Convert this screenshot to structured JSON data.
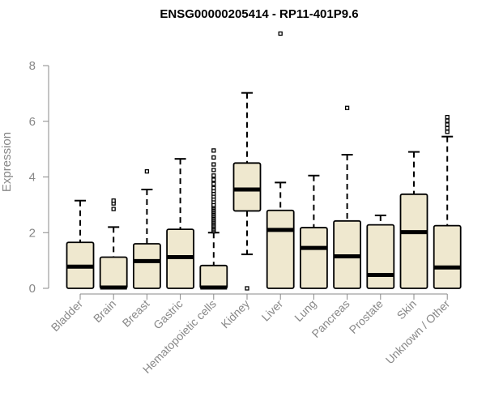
{
  "chart_data": {
    "type": "boxplot",
    "title": "ENSG00000205414 - RP11-401P9.6",
    "xlabel": "",
    "ylabel": "Expression",
    "ylim": [
      0,
      9.3
    ],
    "yticks": [
      0,
      2,
      4,
      6,
      8
    ],
    "grid": false,
    "legend": "none",
    "box_fill": "#efe8cf",
    "box_stroke": "#000000",
    "categories": [
      "Bladder",
      "Brain",
      "Breast",
      "Gastric",
      "Hematopoietic cells",
      "Kidney",
      "Liver",
      "Lung",
      "Pancreas",
      "Prostate",
      "Skin",
      "Unknown / Other"
    ],
    "boxes": [
      {
        "category": "Bladder",
        "min": 0,
        "q1": 0,
        "median": 0.78,
        "q3": 1.65,
        "max": 3.15,
        "outliers": []
      },
      {
        "category": "Brain",
        "min": 0,
        "q1": 0,
        "median": 0.03,
        "q3": 1.12,
        "max": 2.2,
        "outliers": [
          2.85,
          3.05,
          3.15
        ]
      },
      {
        "category": "Breast",
        "min": 0,
        "q1": 0,
        "median": 0.98,
        "q3": 1.6,
        "max": 3.55,
        "outliers": [
          4.2
        ]
      },
      {
        "category": "Gastric",
        "min": 0,
        "q1": 0,
        "median": 1.12,
        "q3": 2.12,
        "max": 4.65,
        "outliers": []
      },
      {
        "category": "Hematopoietic cells",
        "min": 0,
        "q1": 0,
        "median": 0.03,
        "q3": 0.82,
        "max": 2.0,
        "outliers": [
          2.05,
          2.1,
          2.15,
          2.2,
          2.25,
          2.3,
          2.35,
          2.4,
          2.45,
          2.5,
          2.55,
          2.6,
          2.65,
          2.7,
          2.75,
          2.8,
          2.85,
          2.9,
          2.95,
          3.0,
          3.1,
          3.2,
          3.3,
          3.4,
          3.5,
          3.6,
          3.75,
          3.9,
          4.05,
          4.25,
          4.45,
          4.7,
          4.95
        ]
      },
      {
        "category": "Kidney",
        "min": 1.22,
        "q1": 2.78,
        "median": 3.55,
        "q3": 4.5,
        "max": 7.02,
        "outliers": [
          0
        ]
      },
      {
        "category": "Liver",
        "min": 0,
        "q1": 0,
        "median": 2.1,
        "q3": 2.8,
        "max": 3.8,
        "outliers": [
          9.15
        ]
      },
      {
        "category": "Lung",
        "min": 0,
        "q1": 0,
        "median": 1.45,
        "q3": 2.18,
        "max": 4.05,
        "outliers": []
      },
      {
        "category": "Pancreas",
        "min": 0,
        "q1": 0,
        "median": 1.15,
        "q3": 2.42,
        "max": 4.8,
        "outliers": [
          6.48
        ]
      },
      {
        "category": "Prostate",
        "min": 0,
        "q1": 0,
        "median": 0.48,
        "q3": 2.28,
        "max": 2.62,
        "outliers": []
      },
      {
        "category": "Skin",
        "min": 0,
        "q1": 0,
        "median": 2.02,
        "q3": 3.38,
        "max": 4.9,
        "outliers": []
      },
      {
        "category": "Unknown / Other",
        "min": 0,
        "q1": 0,
        "median": 0.75,
        "q3": 2.25,
        "max": 5.45,
        "outliers": [
          5.62,
          5.75,
          5.88,
          6.02,
          6.15
        ]
      }
    ]
  }
}
